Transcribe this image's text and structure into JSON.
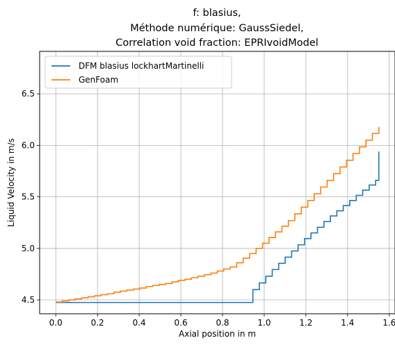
{
  "chart_data": {
    "type": "line",
    "title_lines": [
      "f: blasius,",
      "Méthode numérique: GaussSiedel,",
      "Correlation void fraction: EPRIvoidModel"
    ],
    "xlabel": "Axial position in m",
    "ylabel": "Liquid Velocity in m/s",
    "xlim": [
      -0.0775,
      1.6275
    ],
    "ylim": [
      4.3655,
      6.912
    ],
    "xticks": [
      0.0,
      0.2,
      0.4,
      0.6,
      0.8,
      1.0,
      1.2,
      1.4,
      1.6
    ],
    "xtick_labels": [
      "0.0",
      "0.2",
      "0.4",
      "0.6",
      "0.8",
      "1.0",
      "1.2",
      "1.4",
      "1.6"
    ],
    "yticks": [
      4.5,
      5.0,
      5.5,
      6.0,
      6.5
    ],
    "ytick_labels": [
      "4.5",
      "5.0",
      "5.5",
      "6.0",
      "6.5"
    ],
    "grid": true,
    "legend_position": "upper-left",
    "step_style": "post",
    "series": [
      {
        "name": "DFM blasius lockhartMartinelli",
        "color": "#1f77b4",
        "x": [
          0.0,
          0.9455,
          0.9765,
          1.0075,
          1.0385,
          1.0695,
          1.1005,
          1.1315,
          1.1625,
          1.1935,
          1.2245,
          1.2555,
          1.2865,
          1.3175,
          1.3485,
          1.3795,
          1.4105,
          1.4415,
          1.4725,
          1.5035,
          1.5345,
          1.55
        ],
        "y": [
          4.475,
          4.6,
          4.665,
          4.73,
          4.795,
          4.855,
          4.915,
          4.975,
          5.035,
          5.095,
          5.15,
          5.205,
          5.26,
          5.315,
          5.365,
          5.415,
          5.465,
          5.515,
          5.565,
          5.615,
          5.66,
          5.94
        ]
      },
      {
        "name": "GenFoam",
        "color": "#ff7f0e",
        "x": [
          0.0,
          0.031,
          0.062,
          0.093,
          0.124,
          0.155,
          0.186,
          0.217,
          0.248,
          0.279,
          0.31,
          0.341,
          0.372,
          0.403,
          0.434,
          0.465,
          0.496,
          0.527,
          0.558,
          0.589,
          0.62,
          0.651,
          0.682,
          0.713,
          0.744,
          0.775,
          0.806,
          0.837,
          0.868,
          0.899,
          0.93,
          0.961,
          0.992,
          1.023,
          1.054,
          1.085,
          1.116,
          1.147,
          1.178,
          1.209,
          1.24,
          1.271,
          1.302,
          1.333,
          1.364,
          1.395,
          1.426,
          1.457,
          1.488,
          1.519,
          1.55
        ],
        "y": [
          4.48,
          4.49,
          4.5,
          4.51,
          4.52,
          4.53,
          4.54,
          4.55,
          4.56,
          4.575,
          4.585,
          4.595,
          4.605,
          4.615,
          4.63,
          4.64,
          4.65,
          4.66,
          4.675,
          4.69,
          4.7,
          4.715,
          4.73,
          4.745,
          4.76,
          4.78,
          4.8,
          4.82,
          4.86,
          4.905,
          4.95,
          5.0,
          5.05,
          5.105,
          5.16,
          5.215,
          5.27,
          5.335,
          5.4,
          5.465,
          5.53,
          5.595,
          5.66,
          5.725,
          5.79,
          5.855,
          5.92,
          5.985,
          6.05,
          6.115,
          6.18
        ]
      }
    ]
  }
}
